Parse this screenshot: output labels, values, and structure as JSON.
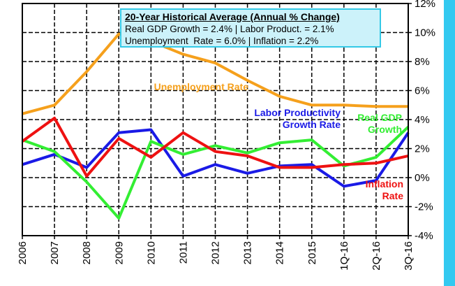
{
  "chart_data": {
    "type": "line",
    "categories": [
      "2006",
      "2007",
      "2008",
      "2009",
      "2010",
      "2011",
      "2012",
      "2013",
      "2014",
      "2015",
      "1Q-16",
      "2Q-16",
      "3Q-16"
    ],
    "series": [
      {
        "name": "Unemployment Rate",
        "color": "#f5a01c",
        "values": [
          4.4,
          5.0,
          7.3,
          9.9,
          9.4,
          8.5,
          7.9,
          6.7,
          5.6,
          5.0,
          5.0,
          4.9,
          4.9
        ]
      },
      {
        "name": "Labor Productivity Growth Rate",
        "color": "#1a1ae6",
        "values": [
          0.9,
          1.6,
          0.7,
          3.1,
          3.3,
          0.1,
          0.9,
          0.3,
          0.8,
          0.9,
          -0.6,
          -0.2,
          3.1
        ]
      },
      {
        "name": "Real GDP Growth",
        "color": "#33ee33",
        "values": [
          2.6,
          1.8,
          -0.3,
          -2.8,
          2.5,
          1.6,
          2.2,
          1.7,
          2.4,
          2.6,
          0.8,
          1.4,
          3.5
        ]
      },
      {
        "name": "Inflation Rate",
        "color": "#ee1111",
        "values": [
          2.5,
          4.1,
          0.1,
          2.7,
          1.4,
          3.1,
          1.8,
          1.5,
          0.7,
          0.7,
          0.9,
          1.0,
          1.5
        ]
      }
    ],
    "ylim": [
      -4,
      12
    ],
    "yticks": [
      {
        "value": -4,
        "label": "-4%"
      },
      {
        "value": -2,
        "label": "-2%"
      },
      {
        "value": 0,
        "label": "0%"
      },
      {
        "value": 2,
        "label": "2%"
      },
      {
        "value": 4,
        "label": "4%"
      },
      {
        "value": 6,
        "label": "6%"
      },
      {
        "value": 8,
        "label": "8%"
      },
      {
        "value": 10,
        "label": "10%"
      },
      {
        "value": 12,
        "label": "12%"
      }
    ],
    "grid": true,
    "annotation": {
      "title": "20-Year Historical Average (Annual % Change)",
      "lines": [
        "Real GDP Growth = 2.4% | Labor Product. = 2.1%",
        "Unemployment  Rate = 6.0% | Inflation = 2.2%"
      ]
    }
  }
}
